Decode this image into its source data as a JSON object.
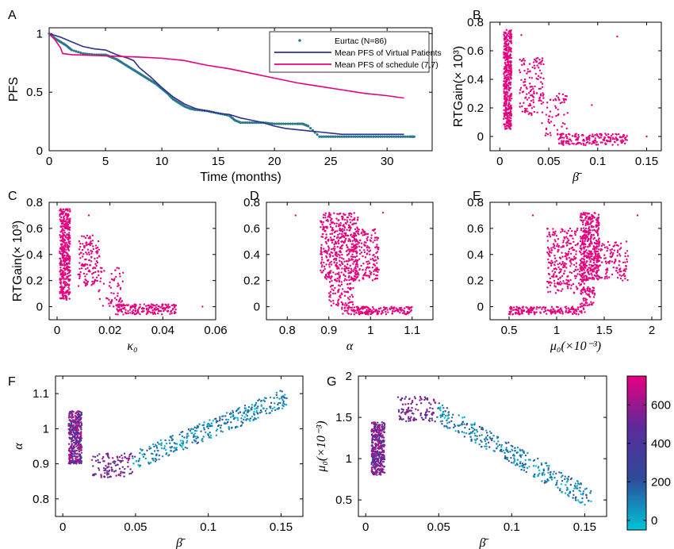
{
  "figure": {
    "panels": [
      "A",
      "B",
      "C",
      "D",
      "E",
      "F",
      "G"
    ]
  },
  "chart_data": [
    {
      "panel": "A",
      "type": "line",
      "xlabel": "Time (months)",
      "ylabel": "PFS",
      "xlim": [
        0,
        34
      ],
      "ylim": [
        0,
        1.05
      ],
      "xticks": [
        0,
        5,
        10,
        15,
        20,
        25,
        30
      ],
      "yticks": [
        0,
        0.5,
        1
      ],
      "ytick_labels": [
        "0",
        "0.5",
        "1"
      ],
      "legend": "top-right",
      "series": [
        {
          "name": "Eurtac (N=86)",
          "style": "dots",
          "color": "#2b7a8c",
          "x": [
            0,
            0.5,
            1,
            1.5,
            2,
            3,
            4,
            5,
            5.5,
            6,
            6.5,
            7,
            7.5,
            8,
            8.5,
            9,
            9.5,
            10,
            10.5,
            11,
            11.5,
            12,
            12.5,
            13,
            14,
            15,
            16,
            16.5,
            17,
            18,
            19,
            20,
            21,
            22,
            22.5,
            23,
            24,
            25,
            26,
            27,
            28,
            29,
            30,
            31,
            32,
            32.5
          ],
          "y": [
            1,
            0.96,
            0.93,
            0.9,
            0.86,
            0.83,
            0.82,
            0.82,
            0.8,
            0.78,
            0.75,
            0.72,
            0.69,
            0.66,
            0.63,
            0.6,
            0.57,
            0.53,
            0.49,
            0.44,
            0.41,
            0.38,
            0.36,
            0.35,
            0.34,
            0.32,
            0.3,
            0.26,
            0.24,
            0.24,
            0.24,
            0.23,
            0.23,
            0.23,
            0.23,
            0.21,
            0.12,
            0.12,
            0.12,
            0.12,
            0.12,
            0.12,
            0.12,
            0.12,
            0.12,
            0.12
          ]
        },
        {
          "name": "Mean PFS of Virtual Patients",
          "style": "line",
          "color": "#2e3192",
          "x": [
            0,
            1,
            2,
            3,
            4,
            5,
            6,
            7,
            7.5,
            8,
            9,
            10,
            11,
            12,
            13,
            14,
            15,
            16,
            17,
            18,
            19,
            20,
            21,
            22,
            23,
            24,
            25,
            26,
            28,
            30,
            31.5
          ],
          "y": [
            1,
            0.97,
            0.93,
            0.89,
            0.87,
            0.86,
            0.82,
            0.79,
            0.77,
            0.71,
            0.63,
            0.54,
            0.46,
            0.4,
            0.36,
            0.34,
            0.32,
            0.31,
            0.28,
            0.26,
            0.24,
            0.21,
            0.19,
            0.18,
            0.17,
            0.16,
            0.15,
            0.14,
            0.14,
            0.14,
            0.14
          ]
        },
        {
          "name": "Mean PFS of schedule (7,7)",
          "style": "line",
          "color": "#e6007e",
          "x": [
            0,
            0.5,
            1,
            1.2,
            2,
            5,
            8,
            10,
            12,
            14,
            16,
            18,
            20,
            22,
            24,
            26,
            28,
            30,
            31.5
          ],
          "y": [
            1,
            0.95,
            0.88,
            0.83,
            0.82,
            0.81,
            0.8,
            0.79,
            0.77,
            0.73,
            0.7,
            0.66,
            0.62,
            0.58,
            0.55,
            0.52,
            0.49,
            0.47,
            0.45
          ]
        }
      ]
    },
    {
      "panel": "B",
      "type": "scatter",
      "xlabel": "β̄",
      "ylabel": "RTGain(× 10³)",
      "xlim": [
        -0.01,
        0.165
      ],
      "ylim": [
        -0.1,
        0.8
      ],
      "xticks": [
        0,
        0.05,
        0.1,
        0.15
      ],
      "yticks": [
        0,
        0.2,
        0.4,
        0.6,
        0.8
      ],
      "clusters": [
        {
          "x": [
            0.004,
            0.012
          ],
          "y": [
            0.05,
            0.75
          ],
          "n": 420
        },
        {
          "x": [
            0.02,
            0.045
          ],
          "y": [
            0.15,
            0.55
          ],
          "n": 130
        },
        {
          "x": [
            0.04,
            0.07
          ],
          "y": [
            0.0,
            0.3
          ],
          "n": 60
        },
        {
          "x": [
            0.06,
            0.13
          ],
          "y": [
            -0.06,
            0.02
          ],
          "n": 180
        }
      ],
      "points": [
        [
          0.12,
          0.7
        ],
        [
          0.094,
          0.22
        ],
        [
          0.15,
          0.0
        ],
        [
          0.022,
          0.71
        ]
      ]
    },
    {
      "panel": "C",
      "type": "scatter",
      "xlabel": "κ₀",
      "ylabel": "RTGain(× 10³)",
      "xlim": [
        -0.003,
        0.06
      ],
      "ylim": [
        -0.1,
        0.8
      ],
      "xticks": [
        0,
        0.02,
        0.04,
        0.06
      ],
      "yticks": [
        0,
        0.2,
        0.4,
        0.6,
        0.8
      ],
      "clusters": [
        {
          "x": [
            0.001,
            0.005
          ],
          "y": [
            0.05,
            0.75
          ],
          "n": 420
        },
        {
          "x": [
            0.008,
            0.016
          ],
          "y": [
            0.15,
            0.55
          ],
          "n": 130
        },
        {
          "x": [
            0.015,
            0.025
          ],
          "y": [
            0.0,
            0.3
          ],
          "n": 60
        },
        {
          "x": [
            0.022,
            0.045
          ],
          "y": [
            -0.06,
            0.02
          ],
          "n": 180
        }
      ],
      "points": [
        [
          0.012,
          0.7
        ],
        [
          0.055,
          0.0
        ]
      ]
    },
    {
      "panel": "D",
      "type": "scatter",
      "xlabel": "α",
      "ylabel": "",
      "xlim": [
        0.75,
        1.15
      ],
      "ylim": [
        -0.1,
        0.8
      ],
      "xticks": [
        0.8,
        0.9,
        1,
        1.1
      ],
      "yticks": [
        0,
        0.2,
        0.4,
        0.6,
        0.8
      ],
      "clusters": [
        {
          "x": [
            0.88,
            0.97
          ],
          "y": [
            0.2,
            0.72
          ],
          "n": 450
        },
        {
          "x": [
            0.96,
            1.02
          ],
          "y": [
            0.2,
            0.6
          ],
          "n": 180
        },
        {
          "x": [
            0.9,
            0.96
          ],
          "y": [
            0.0,
            0.2
          ],
          "n": 80
        },
        {
          "x": [
            0.93,
            1.1
          ],
          "y": [
            -0.06,
            0.0
          ],
          "n": 180
        }
      ],
      "points": [
        [
          0.82,
          0.7
        ],
        [
          1.03,
          0.72
        ]
      ]
    },
    {
      "panel": "E",
      "type": "scatter",
      "xlabel": "μ₀(×10⁻³)",
      "ylabel": "",
      "xlim": [
        0.3,
        2.1
      ],
      "ylim": [
        -0.1,
        0.8
      ],
      "xticks": [
        0.5,
        1,
        1.5,
        2
      ],
      "yticks": [
        0,
        0.2,
        0.4,
        0.6,
        0.8
      ],
      "clusters": [
        {
          "x": [
            0.9,
            1.3
          ],
          "y": [
            0.1,
            0.6
          ],
          "n": 300
        },
        {
          "x": [
            1.25,
            1.45
          ],
          "y": [
            0.2,
            0.72
          ],
          "n": 400
        },
        {
          "x": [
            1.4,
            1.75
          ],
          "y": [
            0.2,
            0.5
          ],
          "n": 130
        },
        {
          "x": [
            1.25,
            1.4
          ],
          "y": [
            0.0,
            0.15
          ],
          "n": 60
        },
        {
          "x": [
            0.5,
            1.3
          ],
          "y": [
            -0.06,
            0.0
          ],
          "n": 180
        }
      ],
      "points": [
        [
          1.85,
          0.7
        ],
        [
          0.75,
          0.7
        ]
      ]
    },
    {
      "panel": "F",
      "type": "scatter",
      "xlabel": "β̄",
      "ylabel": "α",
      "xlim": [
        -0.005,
        0.165
      ],
      "ylim": [
        0.75,
        1.15
      ],
      "xticks": [
        0,
        0.05,
        0.1,
        0.15
      ],
      "yticks": [
        0.8,
        0.9,
        1,
        1.1
      ],
      "colorscale": [
        "#00c5d8",
        "#2e4a9a",
        "#5b2b9a",
        "#e6007e"
      ],
      "clusters": [
        {
          "x": [
            0.004,
            0.013
          ],
          "y": [
            0.9,
            1.05
          ],
          "n": 420,
          "c": [
            0.45,
            0.95
          ]
        },
        {
          "x": [
            0.02,
            0.048
          ],
          "y": [
            0.86,
            0.93
          ],
          "n": 110,
          "c": [
            0.55,
            0.9
          ]
        },
        {
          "x": [
            0.048,
            0.155
          ],
          "y": [
            0.88,
            1.12
          ],
          "n": 360,
          "c": [
            0.0,
            0.35
          ],
          "trend": "rising"
        }
      ]
    },
    {
      "panel": "G",
      "type": "scatter",
      "xlabel": "β̄",
      "ylabel": "μ₀(×10⁻³)",
      "xlim": [
        -0.005,
        0.165
      ],
      "ylim": [
        0.3,
        2.0
      ],
      "xticks": [
        0,
        0.05,
        0.1,
        0.15
      ],
      "yticks": [
        0.5,
        1,
        1.5,
        2
      ],
      "colorbar": {
        "range": [
          -50,
          750
        ],
        "ticks": [
          0,
          200,
          400,
          600
        ],
        "tick_labels": [
          "0",
          "200",
          "400",
          "600"
        ]
      },
      "clusters": [
        {
          "x": [
            0.004,
            0.013
          ],
          "y": [
            0.8,
            1.45
          ],
          "n": 420,
          "c": [
            0.45,
            0.95
          ]
        },
        {
          "x": [
            0.022,
            0.048
          ],
          "y": [
            1.45,
            1.75
          ],
          "n": 110,
          "c": [
            0.55,
            0.9
          ]
        },
        {
          "x": [
            0.048,
            0.155
          ],
          "y": [
            0.38,
            1.7
          ],
          "n": 360,
          "c": [
            0.0,
            0.35
          ],
          "trend": "falling"
        }
      ]
    }
  ]
}
